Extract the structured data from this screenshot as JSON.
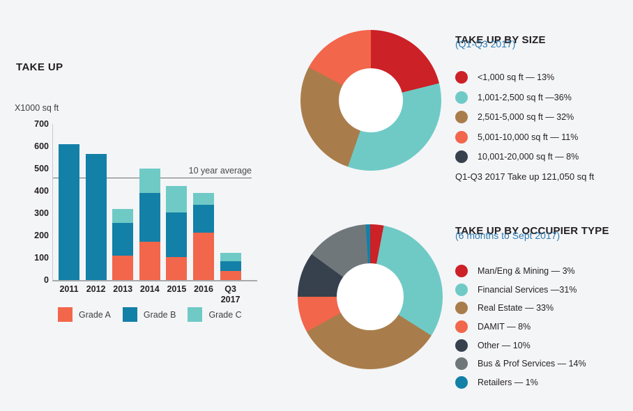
{
  "colors": {
    "background": "#f4f5f7",
    "red": "#cb2127",
    "teal": "#6fcac6",
    "brown": "#a97d4b",
    "orange": "#f2664b",
    "navy": "#36414d",
    "gray": "#70777b",
    "blue": "#1380a7",
    "subtitle_blue": "#2e7cb3",
    "text_dark": "#231f20",
    "axis_line": "#c9cacb",
    "baseline": "#a7a9ab",
    "avg_line": "#6d6e70",
    "donut_hole": "#ffffff"
  },
  "chart_data": [
    {
      "id": "takeup_bars",
      "type": "bar",
      "stacked": true,
      "title": "TAKE UP",
      "ylabel": "X1000 sq ft",
      "ylim": [
        0,
        700
      ],
      "y_ticks": [
        700,
        600,
        500,
        400,
        300,
        200,
        100,
        0
      ],
      "grid": false,
      "legend_position": "bottom",
      "categories": [
        "2011",
        "2012",
        "2013",
        "2014",
        "2015",
        "2016",
        "Q3 2017"
      ],
      "series": [
        {
          "name": "Grade A",
          "color_key": "orange",
          "values": [
            0,
            0,
            110,
            172,
            104,
            213,
            42
          ]
        },
        {
          "name": "Grade B",
          "color_key": "blue",
          "values": [
            610,
            565,
            147,
            218,
            200,
            124,
            41
          ]
        },
        {
          "name": "Grade C",
          "color_key": "teal",
          "values": [
            0,
            0,
            63,
            110,
            118,
            53,
            39
          ]
        }
      ],
      "reference_line": {
        "label": "10 year average",
        "value": 460
      }
    },
    {
      "id": "size_donut",
      "type": "pie",
      "title": "TAKE UP BY SIZE",
      "subtitle": "(Q1-Q3 2017)",
      "summary": "Q1-Q3 2017 Take up 121,050 sq ft",
      "slices": [
        {
          "label": "<1,000 sq ft — 13%",
          "value": 13,
          "color_key": "red",
          "display_pct": 21.1
        },
        {
          "label": "1,001-2,500 sq ft —36%",
          "value": 36,
          "color_key": "teal",
          "display_pct": 34.2
        },
        {
          "label": "2,501-5,000 sq ft — 32%",
          "value": 32,
          "color_key": "brown",
          "display_pct": 27.5
        },
        {
          "label": "5,001-10,000 sq ft — 11%",
          "value": 11,
          "color_key": "orange",
          "display_pct": 17.2
        },
        {
          "label": "10,001-20,000 sq ft — 8%",
          "value": 8,
          "color_key": "navy",
          "display_pct": 0
        }
      ]
    },
    {
      "id": "occupier_donut",
      "type": "pie",
      "title": "TAKE UP BY OCCUPIER TYPE",
      "subtitle": "(6 months to Sept 2017)",
      "slices": [
        {
          "label": "Man/Eng & Mining — 3%",
          "value": 3,
          "color_key": "red",
          "display_pct": 3
        },
        {
          "label": "Financial Services —31%",
          "value": 31,
          "color_key": "teal",
          "display_pct": 31
        },
        {
          "label": "Real Estate — 33%",
          "value": 33,
          "color_key": "brown",
          "display_pct": 33
        },
        {
          "label": "DAMIT — 8%",
          "value": 8,
          "color_key": "orange",
          "display_pct": 8
        },
        {
          "label": "Other — 10%",
          "value": 10,
          "color_key": "navy",
          "display_pct": 10
        },
        {
          "label": "Bus & Prof Services — 14%",
          "value": 14,
          "color_key": "gray",
          "display_pct": 14
        },
        {
          "label": "Retailers — 1%",
          "value": 1,
          "color_key": "blue",
          "display_pct": 1
        }
      ]
    }
  ]
}
